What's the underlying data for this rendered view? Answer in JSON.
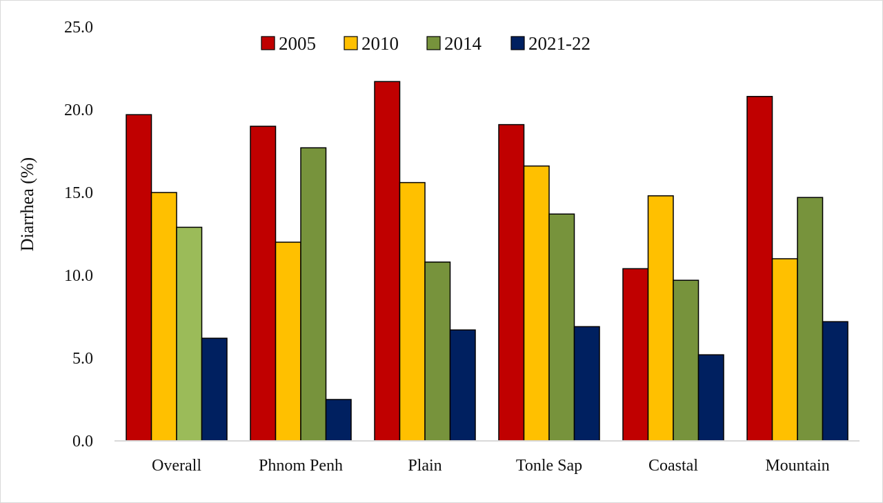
{
  "chart_data": {
    "type": "bar",
    "title": "",
    "xlabel": "",
    "ylabel": "Diarrhea (%)",
    "ylim": [
      0,
      25
    ],
    "yticks": [
      "0.0",
      "5.0",
      "10.0",
      "15.0",
      "20.0",
      "25.0"
    ],
    "grid": false,
    "legend_position": "top",
    "categories": [
      "Overall",
      "Phnom Penh",
      "Plain",
      "Tonle Sap",
      "Coastal",
      "Mountain"
    ],
    "series": [
      {
        "name": "2005",
        "color": "#c00000",
        "values": [
          19.7,
          19.0,
          21.7,
          19.1,
          10.4,
          20.8
        ]
      },
      {
        "name": "2010",
        "color": "#ffc000",
        "values": [
          15.0,
          12.0,
          15.6,
          16.6,
          14.8,
          11.0
        ]
      },
      {
        "name": "2014",
        "color": "#77933c",
        "values": [
          12.9,
          17.7,
          10.8,
          13.7,
          9.7,
          14.7
        ]
      },
      {
        "name": "2021-22",
        "color": "#002060",
        "values": [
          6.2,
          2.5,
          6.7,
          6.9,
          5.2,
          7.2
        ]
      }
    ],
    "point_colors": {
      "2014": {
        "0": "#9bbb59"
      }
    }
  }
}
